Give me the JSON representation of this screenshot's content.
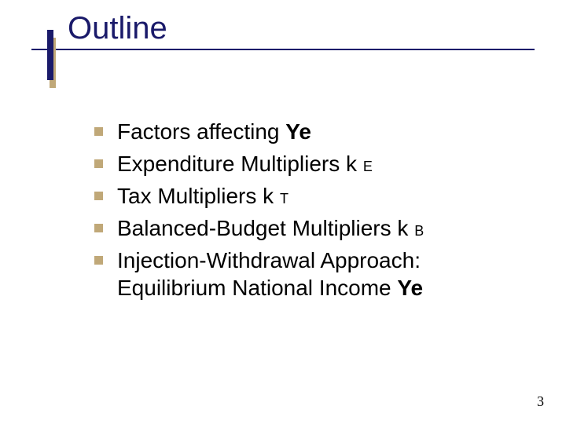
{
  "colors": {
    "navy": "#1a1a6a",
    "tan": "#c0a878",
    "text": "#000000",
    "bullet": "#c0a878",
    "background": "#ffffff"
  },
  "typography": {
    "title_fontsize": 40,
    "body_fontsize": 28,
    "subscript_fontsize": 18,
    "pagenum_fontsize": 18,
    "title_font": "Verdana",
    "body_font": "Verdana",
    "pagenum_font": "Times New Roman"
  },
  "title": "Outline",
  "bullets": [
    {
      "prefix": "Factors affecting ",
      "bold": "Ye",
      "sub": ""
    },
    {
      "prefix": "Expenditure Multipliers k ",
      "bold": "",
      "sub": "E"
    },
    {
      "prefix": "Tax Multipliers k ",
      "bold": "",
      "sub": "T"
    },
    {
      "prefix": "Balanced-Budget Multipliers k ",
      "bold": "",
      "sub": "B"
    },
    {
      "prefix": "Injection-Withdrawal Approach: Equilibrium National Income ",
      "bold": "Ye",
      "sub": ""
    }
  ],
  "page_number": "3"
}
